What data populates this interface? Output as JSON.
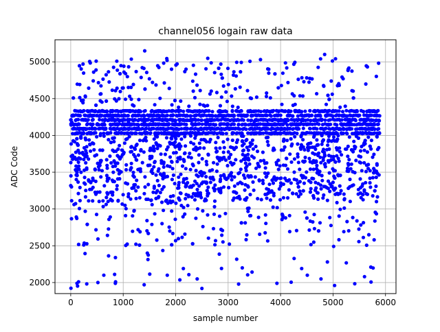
{
  "chart_data": {
    "type": "scatter",
    "title": "channel056 logain raw data",
    "xlabel": "sample number",
    "ylabel": "ADC Code",
    "xlim": [
      -300,
      6200
    ],
    "ylim": [
      1850,
      5300
    ],
    "xticks": [
      0,
      1000,
      2000,
      3000,
      4000,
      5000,
      6000
    ],
    "yticks": [
      2000,
      2500,
      3000,
      3500,
      4000,
      4500,
      5000
    ],
    "xtick_labels": [
      "0",
      "1000",
      "2000",
      "3000",
      "4000",
      "5000",
      "6000"
    ],
    "ytick_labels": [
      "2000",
      "2500",
      "3000",
      "3500",
      "4000",
      "4500",
      "5000"
    ],
    "grid": true,
    "marker_color": "#0000ff",
    "sample_range": [
      0,
      5890
    ],
    "series": [
      {
        "x": [
          20,
          250,
          500,
          800,
          1100,
          1400,
          1700,
          2000,
          2300,
          2600,
          2900,
          3200,
          3500,
          3800,
          4100,
          4400,
          4700,
          5000,
          5300,
          5600,
          5880
        ],
        "y": [
          4180,
          4210,
          4150,
          4230,
          4190,
          4170,
          4220,
          4160,
          4200,
          4180,
          4230,
          4150,
          4190,
          4210,
          4170,
          4200,
          4160,
          4220,
          4180,
          4190,
          4200
        ]
      }
    ],
    "notable_points": {
      "x": [
        1410,
        4840,
        2500,
        120,
        5030,
        1400,
        2410,
        3200,
        3930,
        850,
        1460,
        1840,
        4510,
        4770,
        5600,
        5720,
        3270,
        2760,
        630,
        150
      ],
      "y": [
        5150,
        5100,
        1920,
        1990,
        1960,
        1970,
        2050,
        1980,
        1990,
        1990,
        2400,
        2100,
        2100,
        2050,
        2080,
        2210,
        2200,
        2570,
        2100,
        2010
      ]
    },
    "density": [
      {
        "y_range": [
          4000,
          4380
        ],
        "fraction": 0.55
      },
      {
        "y_range": [
          3100,
          4000
        ],
        "fraction": 0.33
      },
      {
        "y_range": [
          2500,
          3100
        ],
        "fraction": 0.05
      },
      {
        "y_range": [
          4380,
          5050
        ],
        "fraction": 0.06
      },
      {
        "y_range": [
          1920,
          2500
        ],
        "fraction": 0.01
      }
    ]
  }
}
